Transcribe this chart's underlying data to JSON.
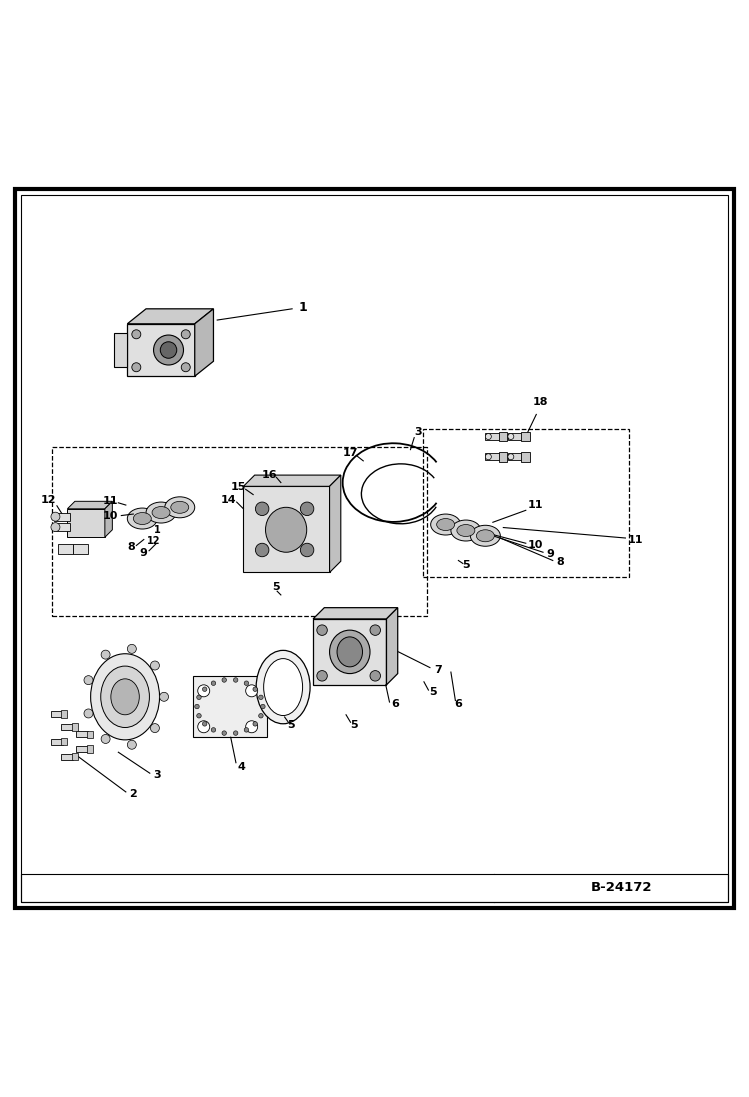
{
  "title": "",
  "background_color": "#ffffff",
  "border_color": "#000000",
  "line_color": "#000000",
  "text_color": "#000000",
  "code_text": "B-24172",
  "figsize": [
    7.49,
    10.97
  ],
  "dpi": 100
}
